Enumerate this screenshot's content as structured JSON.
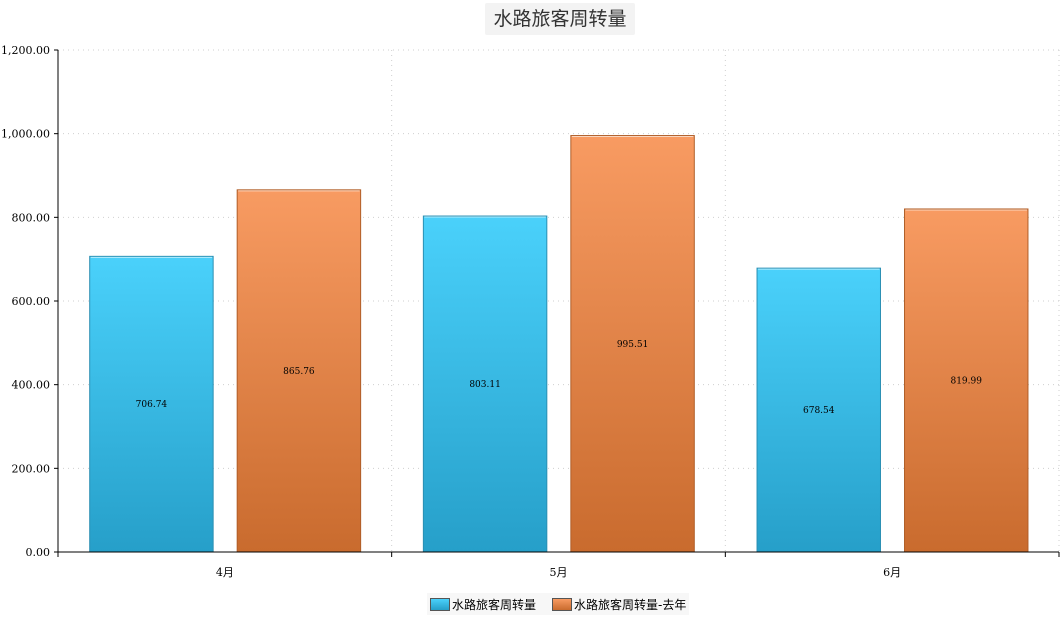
{
  "chart_data": {
    "type": "bar",
    "title": "水路旅客周转量",
    "categories": [
      "4月",
      "5月",
      "6月"
    ],
    "series": [
      {
        "name": "水路旅客周转量",
        "values": [
          706.74,
          803.11,
          678.54
        ],
        "color_top": "#4ad1fb",
        "color_bottom": "#269fc9",
        "edge": "#2a8fb3"
      },
      {
        "name": "水路旅客周转量-去年",
        "values": [
          865.76,
          995.51,
          819.99
        ],
        "color_top": "#f89b62",
        "color_bottom": "#c96b2e",
        "edge": "#b05e28"
      }
    ],
    "data_labels": [
      [
        "706.74",
        "803.11",
        "678.54"
      ],
      [
        "865.76",
        "995.51",
        "819.99"
      ]
    ],
    "ylim": [
      0,
      1200
    ],
    "yticks": [
      0,
      200,
      400,
      600,
      800,
      1000,
      1200
    ],
    "ytick_labels": [
      "0.00",
      "200.00",
      "400.00",
      "600.00",
      "800.00",
      "1,000.00",
      "1,200.00"
    ],
    "xlabel": "",
    "ylabel": "",
    "grid": true,
    "legend_position": "bottom"
  }
}
